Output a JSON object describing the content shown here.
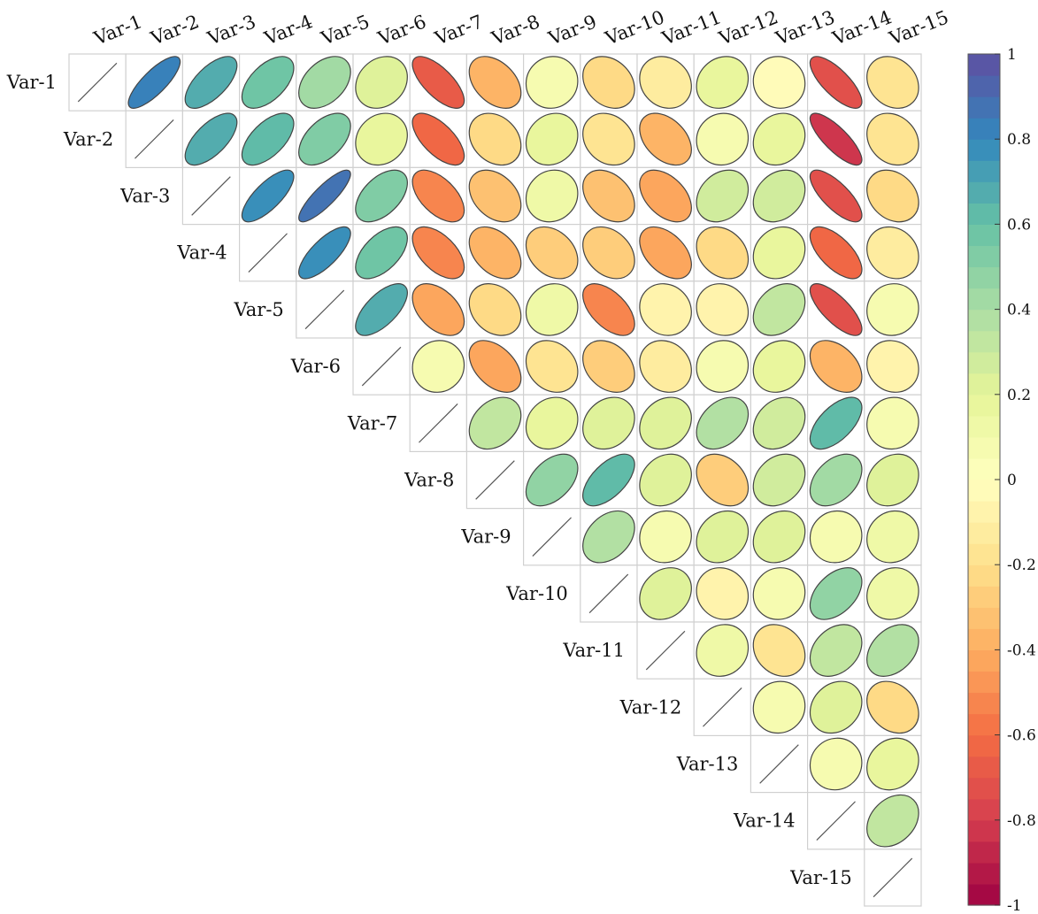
{
  "chart_data": {
    "type": "heatmap",
    "subtype": "correlation-ellipse-upper-triangle",
    "variables": [
      "Var-1",
      "Var-2",
      "Var-3",
      "Var-4",
      "Var-5",
      "Var-6",
      "Var-7",
      "Var-8",
      "Var-9",
      "Var-10",
      "Var-11",
      "Var-12",
      "Var-13",
      "Var-14",
      "Var-15"
    ],
    "matrix": [
      [
        1,
        0.8,
        0.65,
        0.55,
        0.4,
        0.2,
        -0.7,
        -0.4,
        0.05,
        -0.25,
        -0.15,
        0.15,
        -0.05,
        -0.75,
        -0.2
      ],
      [
        0.8,
        1,
        0.65,
        0.6,
        0.5,
        0.15,
        -0.65,
        -0.25,
        0.15,
        -0.2,
        -0.4,
        0.05,
        0.15,
        -0.8,
        -0.2
      ],
      [
        0.65,
        0.65,
        1,
        0.75,
        0.85,
        0.5,
        -0.55,
        -0.35,
        0.1,
        -0.35,
        -0.45,
        0.25,
        0.25,
        -0.75,
        -0.25
      ],
      [
        0.55,
        0.6,
        0.75,
        1,
        0.75,
        0.55,
        -0.55,
        -0.4,
        -0.3,
        -0.3,
        -0.45,
        -0.25,
        0.15,
        -0.65,
        -0.15
      ],
      [
        0.4,
        0.5,
        0.85,
        0.75,
        1,
        0.65,
        -0.45,
        -0.25,
        0.1,
        -0.55,
        -0.1,
        -0.1,
        0.3,
        -0.75,
        0.05
      ],
      [
        0.2,
        0.15,
        0.5,
        0.55,
        0.65,
        1,
        0.05,
        -0.45,
        -0.2,
        -0.3,
        -0.15,
        0.05,
        0.15,
        -0.4,
        -0.1
      ],
      [
        -0.7,
        -0.65,
        -0.55,
        -0.55,
        -0.45,
        0.05,
        1,
        0.3,
        0.15,
        0.2,
        0.2,
        0.35,
        0.25,
        0.6,
        0.05
      ],
      [
        -0.4,
        -0.25,
        -0.35,
        -0.4,
        -0.25,
        -0.45,
        0.3,
        1,
        0.45,
        0.6,
        0.2,
        -0.3,
        0.25,
        0.4,
        0.2
      ],
      [
        0.05,
        0.15,
        0.1,
        -0.3,
        0.1,
        -0.2,
        0.15,
        0.45,
        1,
        0.35,
        0.05,
        0.2,
        0.2,
        0.05,
        0.1
      ],
      [
        -0.25,
        -0.2,
        -0.35,
        -0.3,
        -0.55,
        -0.3,
        0.2,
        0.6,
        0.35,
        1,
        0.2,
        -0.1,
        0.05,
        0.45,
        0.1
      ],
      [
        -0.15,
        -0.4,
        -0.45,
        -0.45,
        -0.1,
        -0.15,
        0.2,
        0.2,
        0.05,
        0.2,
        1,
        0.1,
        -0.2,
        0.3,
        0.35
      ],
      [
        0.15,
        0.05,
        0.25,
        -0.25,
        -0.1,
        0.05,
        0.35,
        -0.3,
        0.2,
        -0.1,
        0.1,
        1,
        0.05,
        0.2,
        -0.25
      ],
      [
        -0.05,
        0.15,
        0.25,
        0.15,
        0.3,
        0.15,
        0.25,
        0.25,
        0.2,
        0.05,
        -0.2,
        0.05,
        1,
        0.05,
        0.15
      ],
      [
        -0.75,
        -0.8,
        -0.75,
        -0.65,
        -0.75,
        -0.4,
        0.6,
        0.4,
        0.05,
        0.45,
        0.3,
        0.2,
        0.05,
        1,
        0.3
      ],
      [
        -0.2,
        -0.2,
        -0.25,
        -0.15,
        0.05,
        -0.1,
        0.05,
        0.2,
        0.1,
        0.1,
        0.35,
        -0.25,
        0.15,
        0.3,
        1
      ]
    ],
    "colorbar": {
      "ticks": [
        "-1",
        "-0.8",
        "-0.6",
        "-0.4",
        "-0.2",
        "0",
        "0.2",
        "0.4",
        "0.6",
        "0.8",
        "1"
      ],
      "range": [
        -1,
        1
      ],
      "levels": 40,
      "colormap": "Spectral",
      "colors": [
        "#9e0142",
        "#d53e4f",
        "#f46d43",
        "#fdae61",
        "#fee08b",
        "#ffffbf",
        "#e6f598",
        "#abdda4",
        "#66c2a5",
        "#3288bd",
        "#5e4fa2"
      ]
    },
    "grid": true,
    "diagonal": "line",
    "ellipse_outline_color": "#444444",
    "grid_color": "#d0d0d0"
  }
}
